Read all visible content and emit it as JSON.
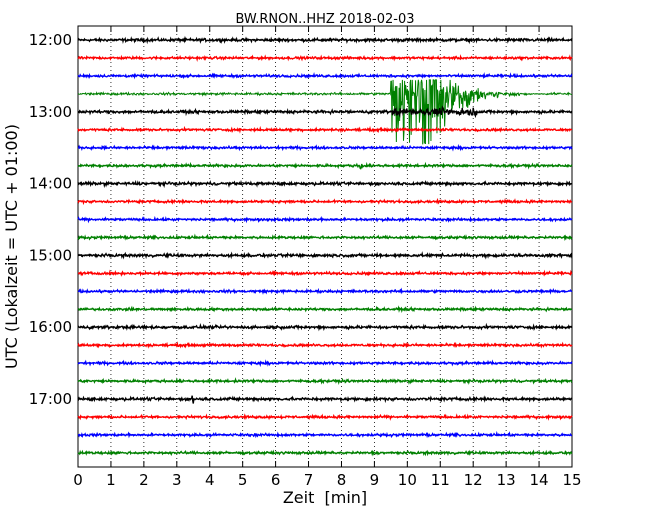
{
  "chart_data": {
    "type": "line",
    "subtype": "helicorder",
    "title": "BW.RNON..HHZ 2018-02-03",
    "xlabel": "Zeit  [min]",
    "ylabel": "UTC (Lokalzeit = UTC + 01:00)",
    "xlim": [
      0,
      15
    ],
    "x_ticks": [
      "0",
      "1",
      "2",
      "3",
      "4",
      "5",
      "6",
      "7",
      "8",
      "9",
      "10",
      "11",
      "12",
      "13",
      "14",
      "15"
    ],
    "y_ticks": [
      "12:00",
      "13:00",
      "14:00",
      "15:00",
      "16:00",
      "17:00"
    ],
    "grid": {
      "x": "dotted-vertical",
      "y": "none"
    },
    "trace_interval_minutes": 15,
    "trace_start": "12:00",
    "trace_count": 24,
    "trace_colors": [
      "#000000",
      "#ff0000",
      "#0000ff",
      "#008000"
    ],
    "event": {
      "trace_row": 3,
      "onset_minute": 9.5,
      "peak_minute": 10.6,
      "end_minute": 14.2,
      "color": "#008000"
    },
    "minor_spikes": [
      {
        "trace_row": 7,
        "minute": 8.6
      },
      {
        "trace_row": 20,
        "minute": 3.5
      }
    ]
  }
}
